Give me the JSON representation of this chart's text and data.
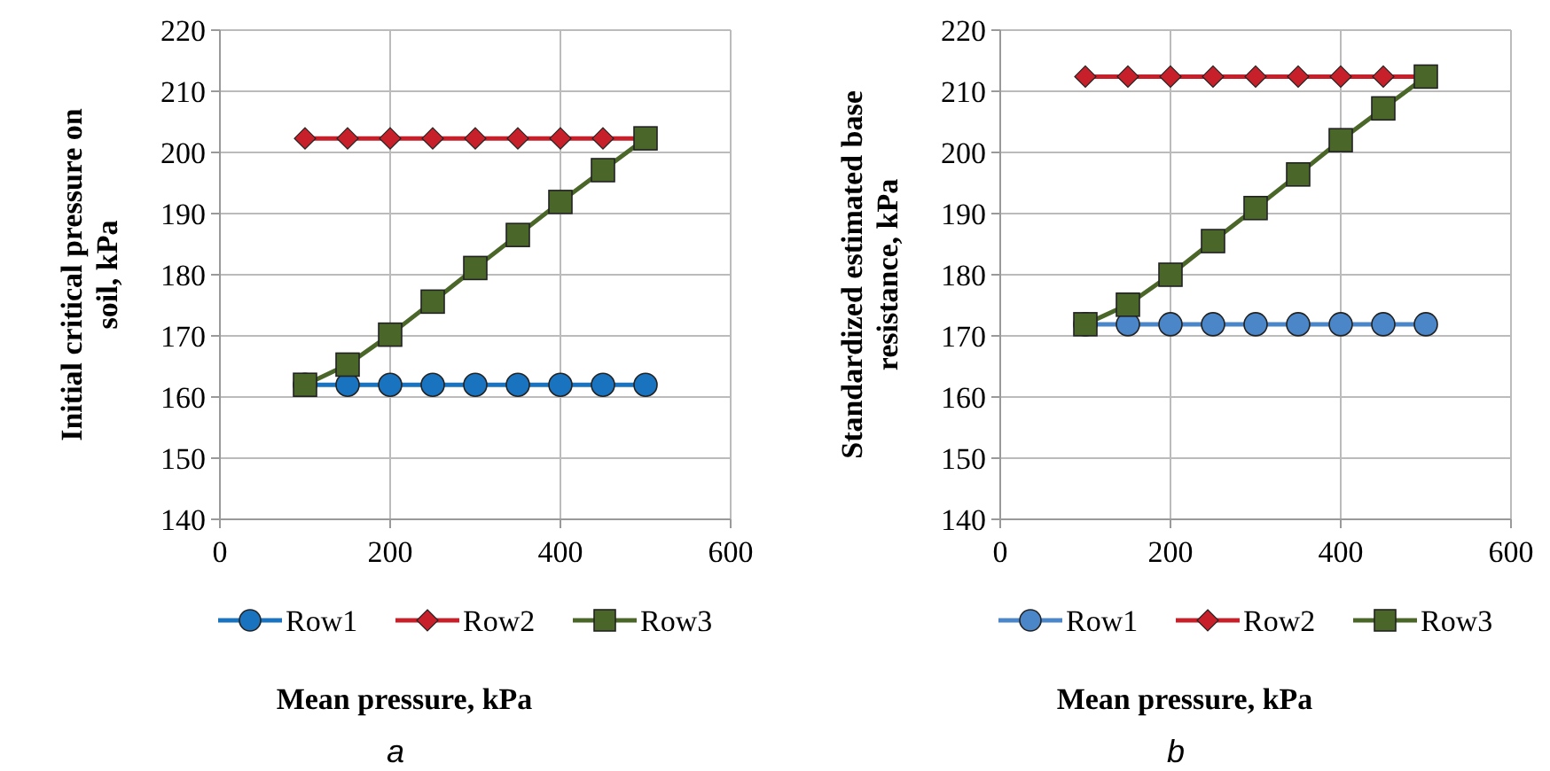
{
  "chart_data": [
    {
      "type": "line",
      "ylabel": "Initial critical pressure on soil, kPa",
      "xlabel": "Mean pressure, kPa",
      "annotations": [
        "a"
      ],
      "x": [
        100,
        150,
        200,
        250,
        300,
        350,
        400,
        450,
        500
      ],
      "xlim": [
        0,
        600
      ],
      "xticks": [
        0,
        200,
        400,
        600
      ],
      "ylim": [
        140,
        220
      ],
      "yticks": [
        140,
        150,
        160,
        170,
        180,
        190,
        200,
        210,
        220
      ],
      "grid": true,
      "legend": "bottom",
      "series": [
        {
          "name": "Row1",
          "color": "#1a73bf",
          "marker": "circle",
          "values": [
            162,
            162,
            162,
            162,
            162,
            162,
            162,
            162,
            162
          ]
        },
        {
          "name": "Row2",
          "color": "#c8202a",
          "marker": "diamond",
          "values": [
            202.3,
            202.3,
            202.3,
            202.3,
            202.3,
            202.3,
            202.3,
            202.3,
            202.3
          ]
        },
        {
          "name": "Row3",
          "color": "#4a6628",
          "marker": "square",
          "values": [
            162,
            165.3,
            170.2,
            175.6,
            181.1,
            186.5,
            191.9,
            197.1,
            202.3
          ]
        }
      ]
    },
    {
      "type": "line",
      "ylabel": "Standardized estimated base resistance, kPa",
      "xlabel": "Mean pressure, kPa",
      "annotations": [
        "b"
      ],
      "x": [
        100,
        150,
        200,
        250,
        300,
        350,
        400,
        450,
        500
      ],
      "xlim": [
        0,
        600
      ],
      "xticks": [
        0,
        200,
        400,
        600
      ],
      "ylim": [
        140,
        220
      ],
      "yticks": [
        140,
        150,
        160,
        170,
        180,
        190,
        200,
        210,
        220
      ],
      "grid": true,
      "legend": "bottom",
      "series": [
        {
          "name": "Row1",
          "color": "#4a86c8",
          "marker": "circle",
          "values": [
            171.9,
            171.9,
            171.9,
            171.9,
            171.9,
            171.9,
            171.9,
            171.9,
            171.9
          ]
        },
        {
          "name": "Row2",
          "color": "#c8202a",
          "marker": "diamond",
          "values": [
            212.4,
            212.4,
            212.4,
            212.4,
            212.4,
            212.4,
            212.4,
            212.4,
            212.4
          ]
        },
        {
          "name": "Row3",
          "color": "#4a6628",
          "marker": "square",
          "values": [
            171.9,
            175.1,
            180,
            185.5,
            190.9,
            196.4,
            202,
            207.2,
            212.4
          ]
        }
      ]
    }
  ]
}
